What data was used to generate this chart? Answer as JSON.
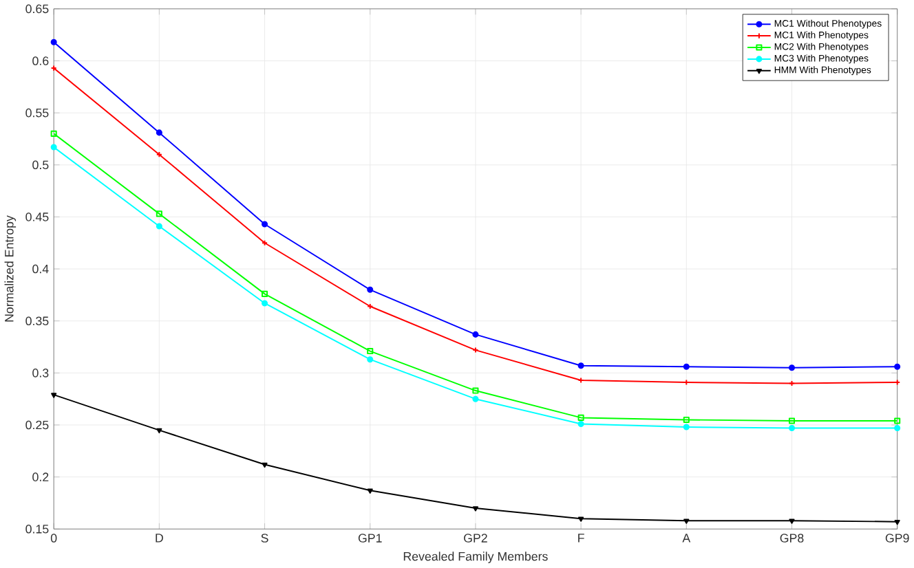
{
  "chart_data": {
    "type": "line",
    "xlabel": "Revealed Family Members",
    "ylabel": "Normalized Entropy",
    "categories": [
      "0",
      "D",
      "S",
      "GP1",
      "GP2",
      "F",
      "A",
      "GP8",
      "GP9"
    ],
    "series": [
      {
        "name": "MC1 Without Phenotypes",
        "color": "#0000ff",
        "marker": "circle",
        "values": [
          0.618,
          0.531,
          0.443,
          0.38,
          0.337,
          0.307,
          0.306,
          0.305,
          0.306
        ]
      },
      {
        "name": "MC1 With Phenotypes",
        "color": "#ff0000",
        "marker": "cross",
        "values": [
          0.593,
          0.51,
          0.425,
          0.364,
          0.322,
          0.293,
          0.291,
          0.29,
          0.291
        ]
      },
      {
        "name": "MC2 With Phenotypes",
        "color": "#00ff00",
        "marker": "square",
        "values": [
          0.53,
          0.453,
          0.376,
          0.321,
          0.283,
          0.257,
          0.255,
          0.254,
          0.254
        ]
      },
      {
        "name": "MC3 With Phenotypes",
        "color": "#00ffff",
        "marker": "circle",
        "values": [
          0.517,
          0.441,
          0.367,
          0.313,
          0.275,
          0.251,
          0.248,
          0.247,
          0.247
        ]
      },
      {
        "name": "HMM With Phenotypes",
        "color": "#000000",
        "marker": "triangle",
        "values": [
          0.279,
          0.245,
          0.212,
          0.187,
          0.17,
          0.16,
          0.158,
          0.158,
          0.157
        ]
      }
    ],
    "ylim": [
      0.15,
      0.65
    ],
    "yticks": [
      0.15,
      0.2,
      0.25,
      0.3,
      0.35,
      0.4,
      0.45,
      0.5,
      0.55,
      0.6,
      0.65
    ],
    "grid": true,
    "legend": "top right",
    "line_style": "solid"
  }
}
